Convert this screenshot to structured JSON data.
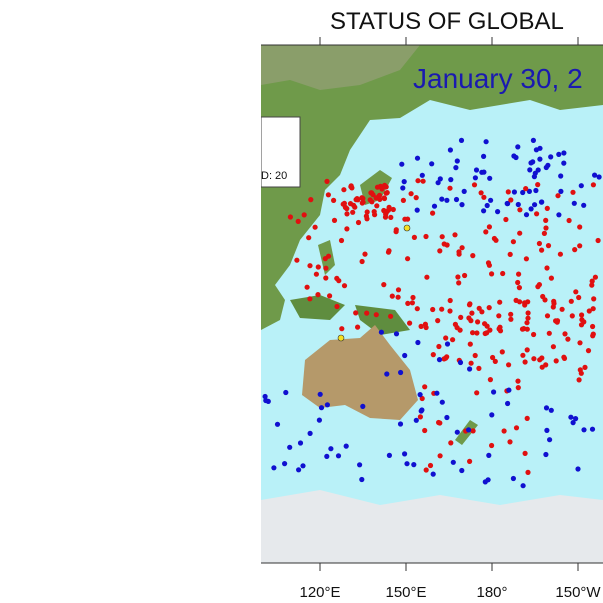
{
  "header": {
    "title": "STATUS OF GLOBAL",
    "date": "January 30, 2"
  },
  "legend": {
    "text": "D: 20"
  },
  "axis": {
    "labels": [
      "120°E",
      "150°E",
      "180°",
      "150°W"
    ]
  }
}
